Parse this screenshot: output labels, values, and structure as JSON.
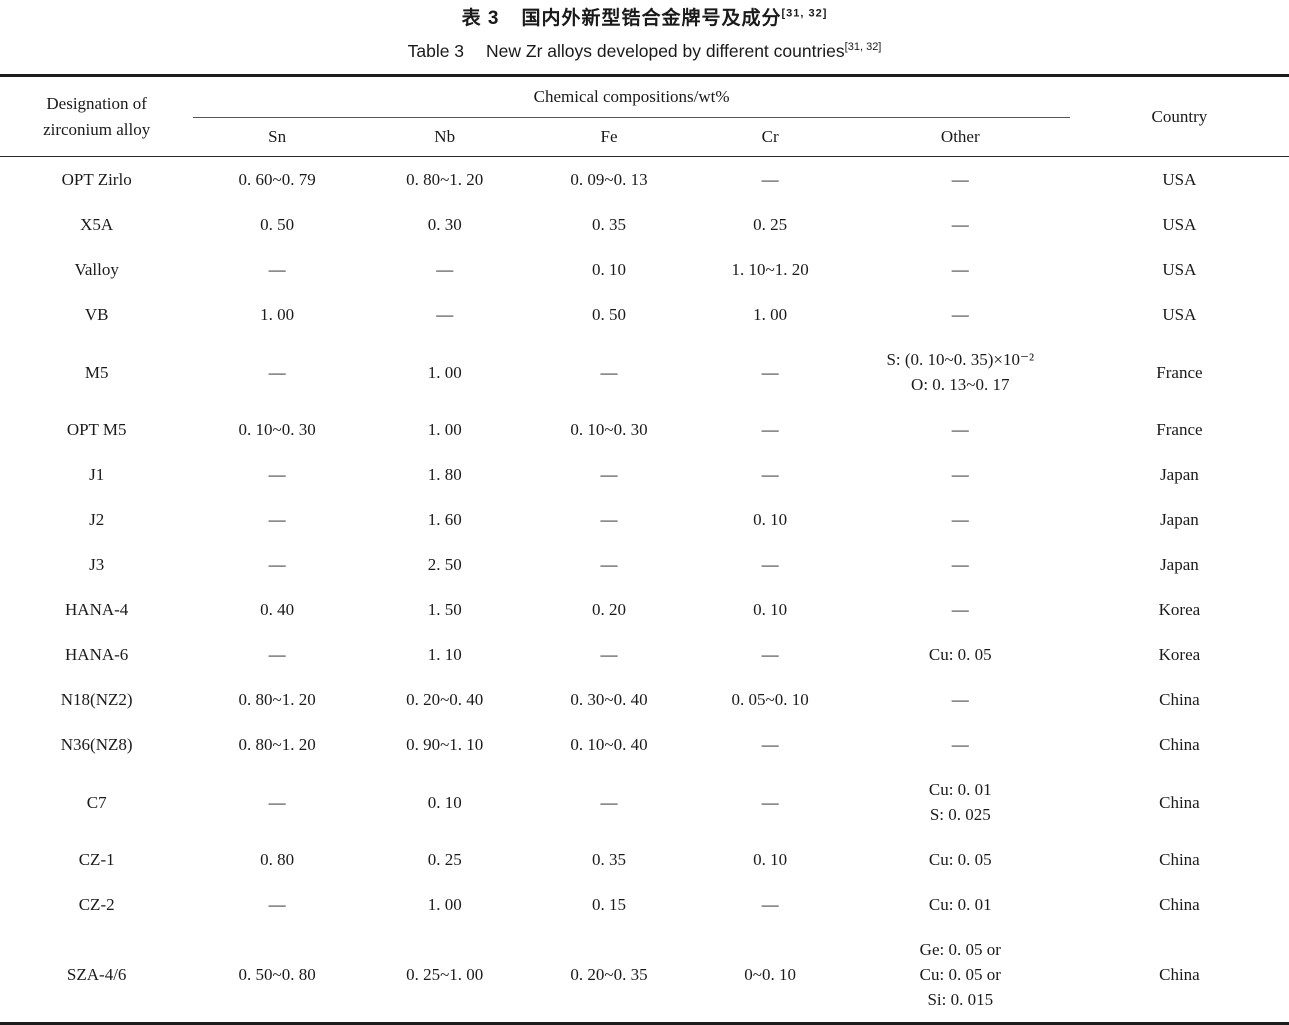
{
  "titles": {
    "zh_label": "表 3",
    "zh_text": "国内外新型锆合金牌号及成分",
    "en_label": "Table 3",
    "en_text": "New Zr alloys developed by different countries",
    "ref": "[31, 32]"
  },
  "table": {
    "col1_header_line1": "Designation of",
    "col1_header_line2": "zirconium alloy",
    "group_header": "Chemical compositions/wt%",
    "sub_headers": [
      "Sn",
      "Nb",
      "Fe",
      "Cr",
      "Other"
    ],
    "country_header": "Country",
    "rows": [
      {
        "name": "OPT Zirlo",
        "sn": "0. 60~0. 79",
        "nb": "0. 80~1. 20",
        "fe": "0. 09~0. 13",
        "cr": "—",
        "other": [
          "—"
        ],
        "country": "USA"
      },
      {
        "name": "X5A",
        "sn": "0. 50",
        "nb": "0. 30",
        "fe": "0. 35",
        "cr": "0. 25",
        "other": [
          "—"
        ],
        "country": "USA"
      },
      {
        "name": "Valloy",
        "sn": "—",
        "nb": "—",
        "fe": "0. 10",
        "cr": "1. 10~1. 20",
        "other": [
          "—"
        ],
        "country": "USA"
      },
      {
        "name": "VB",
        "sn": "1. 00",
        "nb": "—",
        "fe": "0. 50",
        "cr": "1. 00",
        "other": [
          "—"
        ],
        "country": "USA"
      },
      {
        "name": "M5",
        "sn": "—",
        "nb": "1. 00",
        "fe": "—",
        "cr": "—",
        "other": [
          "S: (0. 10~0. 35)×10⁻²",
          "O: 0. 13~0. 17"
        ],
        "country": "France"
      },
      {
        "name": "OPT M5",
        "sn": "0. 10~0. 30",
        "nb": "1. 00",
        "fe": "0. 10~0. 30",
        "cr": "—",
        "other": [
          "—"
        ],
        "country": "France"
      },
      {
        "name": "J1",
        "sn": "—",
        "nb": "1. 80",
        "fe": "—",
        "cr": "—",
        "other": [
          "—"
        ],
        "country": "Japan"
      },
      {
        "name": "J2",
        "sn": "—",
        "nb": "1. 60",
        "fe": "—",
        "cr": "0. 10",
        "other": [
          "—"
        ],
        "country": "Japan"
      },
      {
        "name": "J3",
        "sn": "—",
        "nb": "2. 50",
        "fe": "—",
        "cr": "—",
        "other": [
          "—"
        ],
        "country": "Japan"
      },
      {
        "name": "HANA-4",
        "sn": "0. 40",
        "nb": "1. 50",
        "fe": "0. 20",
        "cr": "0. 10",
        "other": [
          "—"
        ],
        "country": "Korea"
      },
      {
        "name": "HANA-6",
        "sn": "—",
        "nb": "1. 10",
        "fe": "—",
        "cr": "—",
        "other": [
          "Cu: 0. 05"
        ],
        "country": "Korea"
      },
      {
        "name": "N18(NZ2)",
        "sn": "0. 80~1. 20",
        "nb": "0. 20~0. 40",
        "fe": "0. 30~0. 40",
        "cr": "0. 05~0. 10",
        "other": [
          "—"
        ],
        "country": "China"
      },
      {
        "name": "N36(NZ8)",
        "sn": "0. 80~1. 20",
        "nb": "0. 90~1. 10",
        "fe": "0. 10~0. 40",
        "cr": "—",
        "other": [
          "—"
        ],
        "country": "China"
      },
      {
        "name": "C7",
        "sn": "—",
        "nb": "0. 10",
        "fe": "—",
        "cr": "—",
        "other": [
          "Cu: 0. 01",
          "S: 0. 025"
        ],
        "country": "China"
      },
      {
        "name": "CZ-1",
        "sn": "0. 80",
        "nb": "0. 25",
        "fe": "0. 35",
        "cr": "0. 10",
        "other": [
          "Cu: 0. 05"
        ],
        "country": "China"
      },
      {
        "name": "CZ-2",
        "sn": "—",
        "nb": "1. 00",
        "fe": "0. 15",
        "cr": "—",
        "other": [
          "Cu: 0. 01"
        ],
        "country": "China"
      },
      {
        "name": "SZA-4/6",
        "sn": "0. 50~0. 80",
        "nb": "0. 25~1. 00",
        "fe": "0. 20~0. 35",
        "cr": "0~0. 10",
        "other": [
          "Ge: 0. 05 or",
          "Cu: 0. 05 or",
          "Si: 0. 015"
        ],
        "country": "China"
      }
    ]
  }
}
